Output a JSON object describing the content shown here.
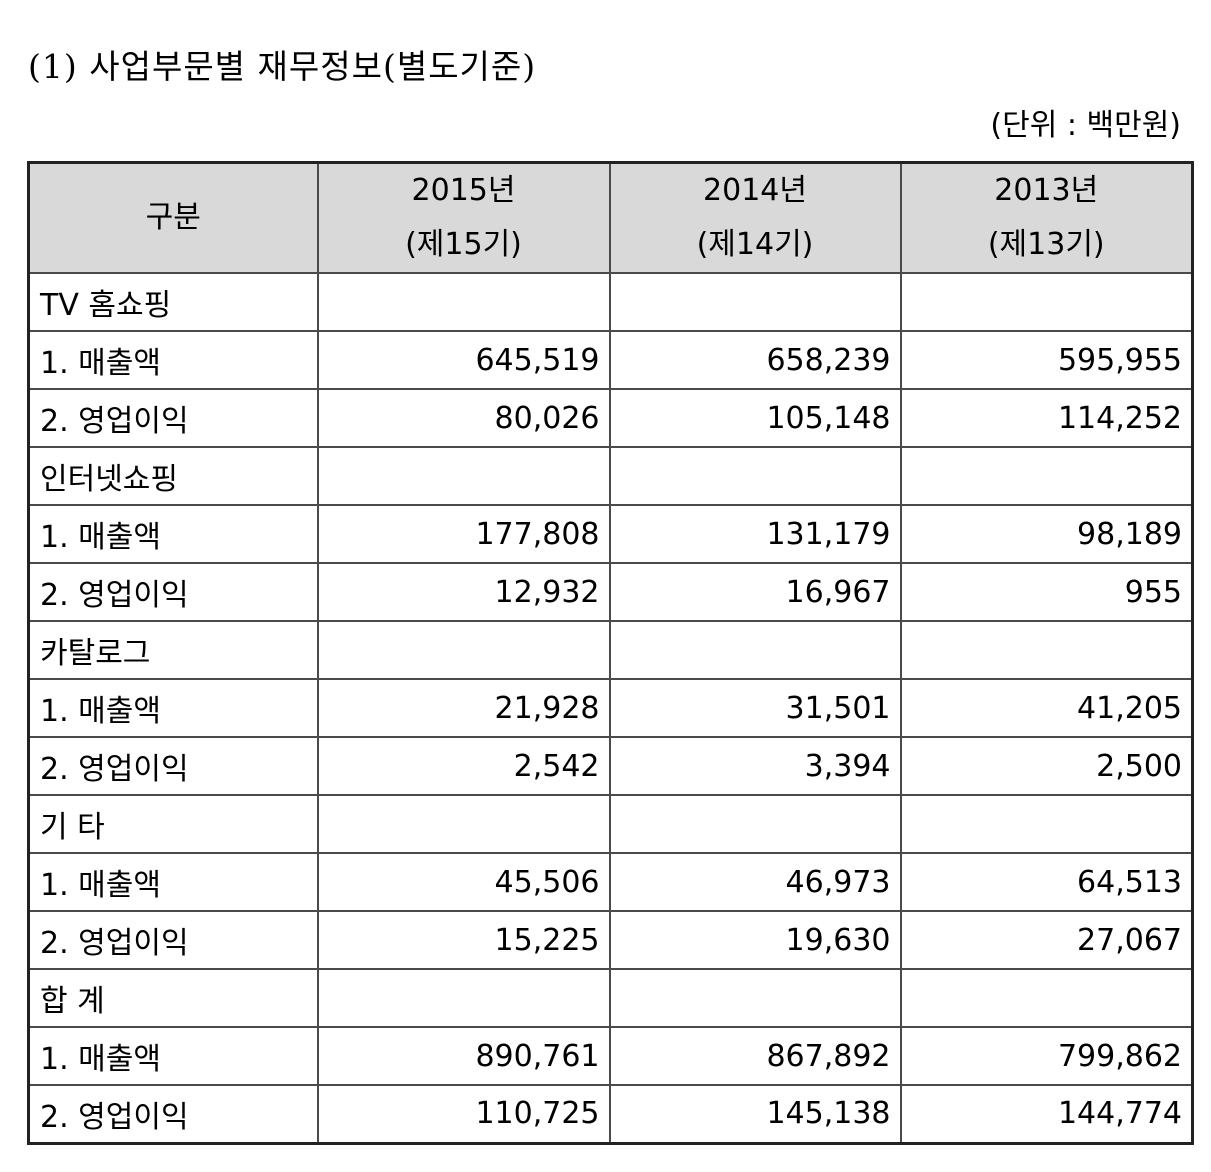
{
  "title": "(1) 사업부문별 재무정보(별도기준)",
  "unit": "(단위 : 백만원)",
  "table": {
    "header": {
      "category": "구분",
      "years": [
        {
          "year": "2015년",
          "period": "(제15기)"
        },
        {
          "year": "2014년",
          "period": "(제14기)"
        },
        {
          "year": "2013년",
          "period": "(제13기)"
        }
      ]
    },
    "rows": [
      {
        "label": "TV 홈쇼핑",
        "values": [
          "",
          "",
          ""
        ]
      },
      {
        "label": "1. 매출액",
        "values": [
          "645,519",
          "658,239",
          "595,955"
        ]
      },
      {
        "label": "2. 영업이익",
        "values": [
          "80,026",
          "105,148",
          "114,252"
        ]
      },
      {
        "label": "인터넷쇼핑",
        "values": [
          "",
          "",
          ""
        ]
      },
      {
        "label": "1. 매출액",
        "values": [
          "177,808",
          "131,179",
          "98,189"
        ]
      },
      {
        "label": "2. 영업이익",
        "values": [
          "12,932",
          "16,967",
          "955"
        ]
      },
      {
        "label": "카탈로그",
        "values": [
          "",
          "",
          ""
        ]
      },
      {
        "label": "1. 매출액",
        "values": [
          "21,928",
          "31,501",
          "41,205"
        ]
      },
      {
        "label": "2. 영업이익",
        "values": [
          "2,542",
          "3,394",
          "2,500"
        ]
      },
      {
        "label": "기 타",
        "values": [
          "",
          "",
          ""
        ]
      },
      {
        "label": "1. 매출액",
        "values": [
          "45,506",
          "46,973",
          "64,513"
        ]
      },
      {
        "label": "2. 영업이익",
        "values": [
          "15,225",
          "19,630",
          "27,067"
        ]
      },
      {
        "label": "합 계",
        "values": [
          "",
          "",
          ""
        ]
      },
      {
        "label": "1. 매출액",
        "values": [
          "890,761",
          "867,892",
          "799,862"
        ]
      },
      {
        "label": "2. 영업이익",
        "values": [
          "110,725",
          "145,138",
          "144,774"
        ]
      }
    ]
  }
}
